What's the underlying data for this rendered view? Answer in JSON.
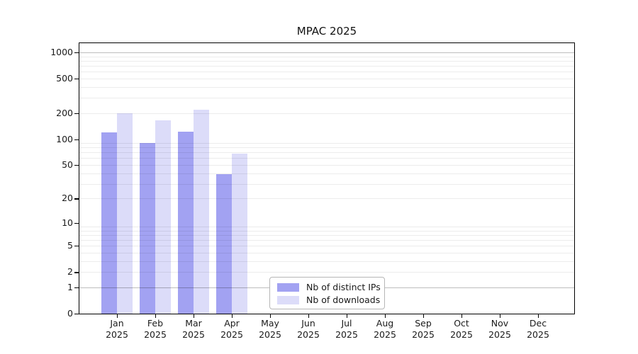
{
  "title": "MPAC 2025",
  "colors": {
    "bar_distinct_ips": "#a2a2f2",
    "bar_downloads": "#dcdcf9",
    "axis_frame": "#000000",
    "major_gridline": "#bdbdbd",
    "minor_gridline": "#ececec",
    "text": "#1a1a1a"
  },
  "chart_data": {
    "type": "bar",
    "title": "MPAC 2025",
    "categories": [
      "Jan 2025",
      "Feb 2025",
      "Mar 2025",
      "Apr 2025",
      "May 2025",
      "Jun 2025",
      "Jul 2025",
      "Aug 2025",
      "Sep 2025",
      "Oct 2025",
      "Nov 2025",
      "Dec 2025"
    ],
    "series": [
      {
        "key": "distinct-ips",
        "name": "Nb of distinct IPs",
        "color": "#a2a2f2",
        "values": [
          119,
          90,
          123,
          39,
          null,
          null,
          null,
          null,
          null,
          null,
          null,
          null
        ]
      },
      {
        "key": "downloads",
        "name": "Nb of downloads",
        "color": "#dcdcf9",
        "values": [
          199,
          165,
          220,
          68,
          null,
          null,
          null,
          null,
          null,
          null,
          null,
          null
        ]
      }
    ],
    "y_axis": {
      "scale": "symlog-log1p",
      "ticks": [
        0,
        1,
        2,
        5,
        10,
        20,
        50,
        100,
        200,
        500,
        1000
      ],
      "minor_gridlines": "n x 10^k for n=2..9",
      "range_top_tick": 1000,
      "range_bottom": 0
    },
    "x_axis": {
      "label_style": "two-line month over year"
    },
    "legend": {
      "position": "lower-center",
      "entries": [
        "Nb of distinct IPs",
        "Nb of downloads"
      ]
    },
    "grid": {
      "horizontal": true,
      "vertical": false,
      "gridlines_over_bars": true
    }
  }
}
